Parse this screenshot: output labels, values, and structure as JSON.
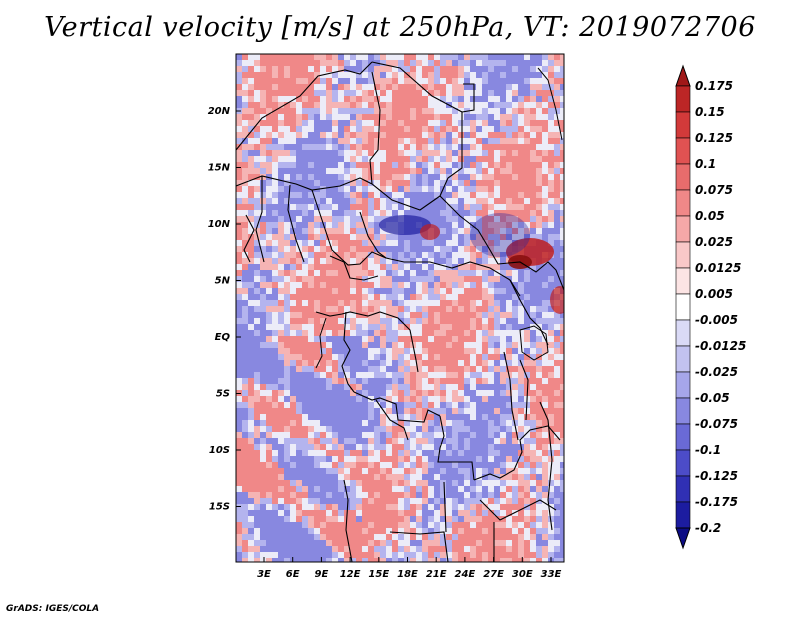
{
  "title": "Vertical velocity [m/s] at 250hPa, VT: 2019072706",
  "credit": "GrADS: IGES/COLA",
  "map": {
    "lat_labels": [
      "20N",
      "15N",
      "10N",
      "5N",
      "EQ",
      "5S",
      "10S",
      "15S"
    ],
    "lon_labels": [
      "3E",
      "6E",
      "9E",
      "12E",
      "15E",
      "18E",
      "21E",
      "24E",
      "27E",
      "30E",
      "33E"
    ],
    "lon_range": [
      0,
      35
    ],
    "lat_range": [
      -20,
      25
    ]
  },
  "colorbar": {
    "labels": [
      "0.175",
      "0.15",
      "0.125",
      "0.1",
      "0.075",
      "0.05",
      "0.025",
      "0.0125",
      "0.005",
      "-0.005",
      "-0.0125",
      "-0.025",
      "-0.05",
      "-0.075",
      "-0.1",
      "-0.125",
      "-0.175",
      "-0.2"
    ],
    "colors": [
      "#a01818",
      "#bc2626",
      "#d23a3a",
      "#e05252",
      "#e86c6c",
      "#f08888",
      "#f5a8a8",
      "#f9c8c8",
      "#fce4e4",
      "#ffffff",
      "#dadaf6",
      "#c2c2f0",
      "#a6a6ea",
      "#8888e0",
      "#6a6ad6",
      "#4c4cc8",
      "#3030b4",
      "#1c1ca0",
      "#0c0c84"
    ]
  },
  "field_colors": {
    "positive": "#f08888",
    "negative": "#8888e0",
    "neutral": "#ececf8",
    "strong_up": "#c02020",
    "strong_down": "#2020a0"
  }
}
